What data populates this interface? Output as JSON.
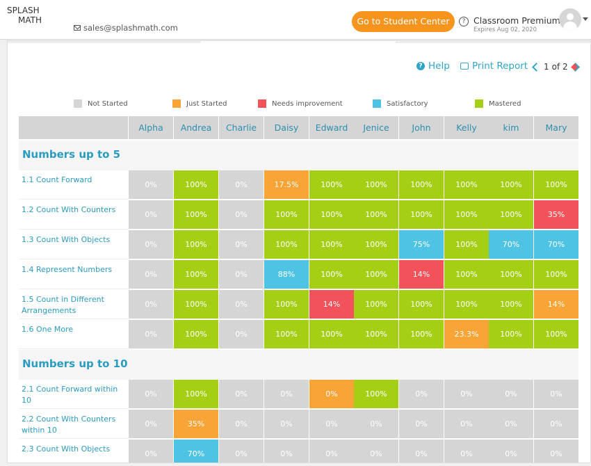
{
  "header": {
    "logo_rows": [
      "SPLASH",
      "MATH"
    ],
    "email": "sales@splashmath.com",
    "student_center_label": "Go to Student Center",
    "plan_name": "Classroom Premium",
    "plan_expiry": "Expires Aug 02, 2020",
    "help_icon_glyph": "?"
  },
  "toolbar": {
    "help_label": "Help",
    "print_label": "Print Report",
    "page_current": "1",
    "page_of": "of 2"
  },
  "legend": [
    {
      "label": "Not Started",
      "color": "#d5d5d5"
    },
    {
      "label": "Just Started",
      "color": "#f8a436"
    },
    {
      "label": "Needs improvement",
      "color": "#f2525a"
    },
    {
      "label": "Satisfactory",
      "color": "#4ec3e3"
    },
    {
      "label": "Mastered",
      "color": "#a4cf14"
    }
  ],
  "students": [
    "Alpha",
    "Andrea",
    "Charlie",
    "Daisy",
    "Edward",
    "Jenice",
    "John",
    "Kelly",
    "kim",
    "Mary"
  ],
  "sections": [
    {
      "title": "Numbers up to 5",
      "skills": [
        {
          "label": "1.1   Count Forward",
          "values": [
            "0%",
            "100%",
            "0%",
            "17.5%",
            "100%",
            "100%",
            "100%",
            "100%",
            "100%",
            "100%"
          ],
          "status": [
            "g",
            "gr",
            "g",
            "o",
            "gr",
            "gr",
            "gr",
            "gr",
            "gr",
            "gr"
          ]
        },
        {
          "label": "1.2   Count With Counters",
          "values": [
            "0%",
            "100%",
            "0%",
            "100%",
            "100%",
            "100%",
            "100%",
            "100%",
            "100%",
            "35%"
          ],
          "status": [
            "g",
            "gr",
            "g",
            "gr",
            "gr",
            "gr",
            "gr",
            "gr",
            "gr",
            "r"
          ]
        },
        {
          "label": "1.3   Count With Objects",
          "values": [
            "0%",
            "100%",
            "0%",
            "100%",
            "100%",
            "100%",
            "75%",
            "100%",
            "70%",
            "70%"
          ],
          "status": [
            "g",
            "gr",
            "g",
            "gr",
            "gr",
            "gr",
            "b",
            "gr",
            "b",
            "b"
          ]
        },
        {
          "label": "1.4   Represent Numbers",
          "values": [
            "0%",
            "100%",
            "0%",
            "88%",
            "100%",
            "100%",
            "14%",
            "100%",
            "100%",
            "100%"
          ],
          "status": [
            "g",
            "gr",
            "g",
            "b",
            "gr",
            "gr",
            "r",
            "gr",
            "gr",
            "gr"
          ]
        },
        {
          "label": "1.5   Count in Different Arrangements",
          "values": [
            "0%",
            "100%",
            "0%",
            "100%",
            "14%",
            "100%",
            "100%",
            "100%",
            "100%",
            "14%"
          ],
          "status": [
            "g",
            "gr",
            "g",
            "gr",
            "r",
            "gr",
            "gr",
            "gr",
            "gr",
            "o"
          ]
        },
        {
          "label": "1.6   One More",
          "values": [
            "0%",
            "100%",
            "0%",
            "100%",
            "100%",
            "100%",
            "100%",
            "23.3%",
            "100%",
            "100%"
          ],
          "status": [
            "g",
            "gr",
            "g",
            "gr",
            "gr",
            "gr",
            "gr",
            "o",
            "gr",
            "gr"
          ]
        }
      ]
    },
    {
      "title": "Numbers up to 10",
      "skills": [
        {
          "label": "2.1   Count Forward within 10",
          "values": [
            "0%",
            "100%",
            "0%",
            "0%",
            "0%",
            "100%",
            "0%",
            "0%",
            "0%",
            "0%"
          ],
          "status": [
            "g",
            "gr",
            "g",
            "g",
            "o",
            "gr",
            "g",
            "g",
            "g",
            "g"
          ]
        },
        {
          "label": "2.2   Count With Counters within 10",
          "values": [
            "0%",
            "35%",
            "0%",
            "0%",
            "0%",
            "0%",
            "0%",
            "0%",
            "0%",
            "0%"
          ],
          "status": [
            "g",
            "o",
            "g",
            "g",
            "g",
            "g",
            "g",
            "g",
            "g",
            "g"
          ]
        },
        {
          "label": "2.3   Count With Objects",
          "values": [
            "0%",
            "70%",
            "0%",
            "0%",
            "0%",
            "0%",
            "0%",
            "0%",
            "0%",
            "0%"
          ],
          "status": [
            "g",
            "b",
            "g",
            "g",
            "g",
            "g",
            "g",
            "g",
            "g",
            "g"
          ]
        }
      ]
    }
  ]
}
